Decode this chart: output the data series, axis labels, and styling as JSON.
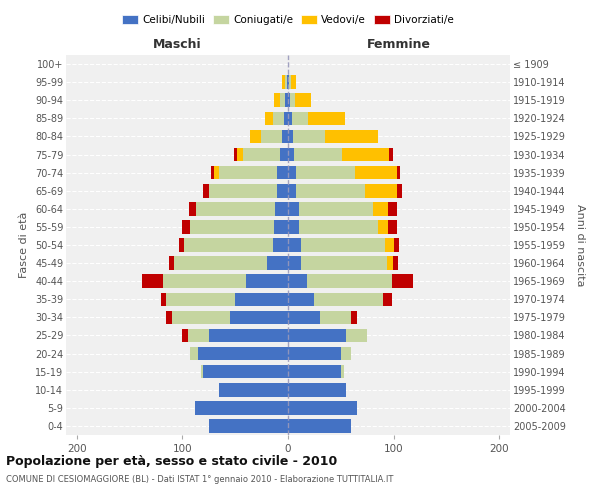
{
  "age_groups": [
    "0-4",
    "5-9",
    "10-14",
    "15-19",
    "20-24",
    "25-29",
    "30-34",
    "35-39",
    "40-44",
    "45-49",
    "50-54",
    "55-59",
    "60-64",
    "65-69",
    "70-74",
    "75-79",
    "80-84",
    "85-89",
    "90-94",
    "95-99",
    "100+"
  ],
  "birth_years": [
    "2005-2009",
    "2000-2004",
    "1995-1999",
    "1990-1994",
    "1985-1989",
    "1980-1984",
    "1975-1979",
    "1970-1974",
    "1965-1969",
    "1960-1964",
    "1955-1959",
    "1950-1954",
    "1945-1949",
    "1940-1944",
    "1935-1939",
    "1930-1934",
    "1925-1929",
    "1920-1924",
    "1915-1919",
    "1910-1914",
    "≤ 1909"
  ],
  "maschi": {
    "celibi": [
      75,
      88,
      65,
      80,
      85,
      75,
      55,
      50,
      40,
      20,
      14,
      13,
      12,
      10,
      10,
      8,
      6,
      4,
      3,
      1,
      0
    ],
    "coniugati": [
      0,
      0,
      0,
      2,
      8,
      20,
      55,
      65,
      78,
      88,
      84,
      80,
      75,
      65,
      55,
      35,
      20,
      10,
      5,
      2,
      0
    ],
    "vedovi": [
      0,
      0,
      0,
      0,
      0,
      0,
      0,
      0,
      0,
      0,
      0,
      0,
      0,
      0,
      5,
      5,
      10,
      8,
      5,
      3,
      0
    ],
    "divorziati": [
      0,
      0,
      0,
      0,
      0,
      5,
      5,
      5,
      20,
      5,
      5,
      7,
      7,
      5,
      3,
      3,
      0,
      0,
      0,
      0,
      0
    ]
  },
  "femmine": {
    "nubili": [
      60,
      65,
      55,
      50,
      50,
      55,
      30,
      25,
      18,
      12,
      12,
      10,
      10,
      8,
      8,
      6,
      5,
      4,
      2,
      1,
      0
    ],
    "coniugate": [
      0,
      0,
      0,
      3,
      10,
      20,
      30,
      65,
      80,
      82,
      80,
      75,
      70,
      65,
      55,
      45,
      30,
      15,
      5,
      2,
      0
    ],
    "vedove": [
      0,
      0,
      0,
      0,
      0,
      0,
      0,
      0,
      0,
      5,
      8,
      10,
      15,
      30,
      40,
      45,
      50,
      35,
      15,
      5,
      0
    ],
    "divorziate": [
      0,
      0,
      0,
      0,
      0,
      0,
      5,
      8,
      20,
      5,
      5,
      8,
      8,
      5,
      3,
      3,
      0,
      0,
      0,
      0,
      0
    ]
  },
  "colors": {
    "celibi": "#4472c4",
    "coniugati": "#c5d5a0",
    "vedovi": "#ffc000",
    "divorziati": "#c00000"
  },
  "xlim": 210,
  "title": "Popolazione per età, sesso e stato civile - 2010",
  "subtitle": "COMUNE DI CESIOMAGGIORE (BL) - Dati ISTAT 1° gennaio 2010 - Elaborazione TUTTITALIA.IT",
  "ylabel_left": "Fasce di età",
  "ylabel_right": "Anni di nascita",
  "legend_labels": [
    "Celibi/Nubili",
    "Coniugati/e",
    "Vedovi/e",
    "Divorziati/e"
  ],
  "bg_color": "#f0f0f0"
}
